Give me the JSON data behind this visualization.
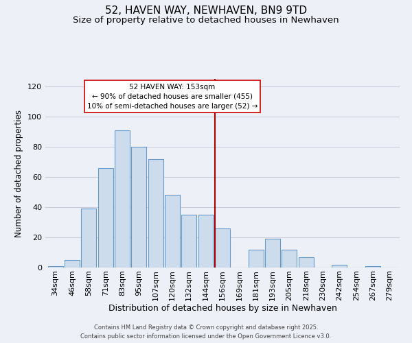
{
  "title": "52, HAVEN WAY, NEWHAVEN, BN9 9TD",
  "subtitle": "Size of property relative to detached houses in Newhaven",
  "xlabel": "Distribution of detached houses by size in Newhaven",
  "ylabel": "Number of detached properties",
  "bar_labels": [
    "34sqm",
    "46sqm",
    "58sqm",
    "71sqm",
    "83sqm",
    "95sqm",
    "107sqm",
    "120sqm",
    "132sqm",
    "144sqm",
    "156sqm",
    "169sqm",
    "181sqm",
    "193sqm",
    "205sqm",
    "218sqm",
    "230sqm",
    "242sqm",
    "254sqm",
    "267sqm",
    "279sqm"
  ],
  "bar_heights": [
    1,
    5,
    39,
    66,
    91,
    80,
    72,
    48,
    35,
    35,
    26,
    0,
    12,
    19,
    12,
    7,
    0,
    2,
    0,
    1,
    0
  ],
  "bar_color": "#ccdcec",
  "bar_edge_color": "#6699cc",
  "vline_color": "#aa0000",
  "annotation_title": "52 HAVEN WAY: 153sqm",
  "annotation_line1": "← 90% of detached houses are smaller (455)",
  "annotation_line2": "10% of semi-detached houses are larger (52) →",
  "annotation_box_color": "white",
  "annotation_box_edge_color": "#cc0000",
  "ylim": [
    0,
    125
  ],
  "yticks": [
    0,
    20,
    40,
    60,
    80,
    100,
    120
  ],
  "title_fontsize": 11,
  "subtitle_fontsize": 9.5,
  "xlabel_fontsize": 9,
  "ylabel_fontsize": 8.5,
  "tick_fontsize": 8,
  "footer_line1": "Contains HM Land Registry data © Crown copyright and database right 2025.",
  "footer_line2": "Contains public sector information licensed under the Open Government Licence v3.0.",
  "background_color": "#eef0f8",
  "grid_color": "#ccccdd"
}
